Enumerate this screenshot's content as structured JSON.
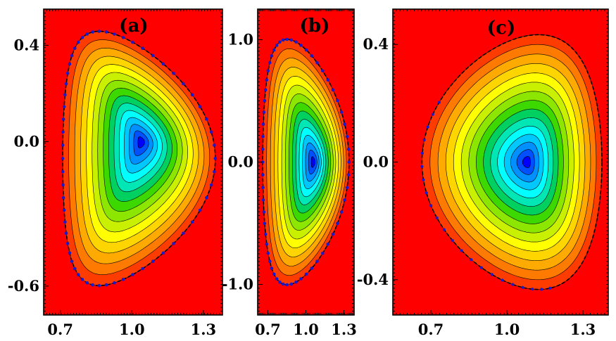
{
  "chart_data": [
    {
      "type": "heatmap",
      "panel_label": "(a)",
      "xlim": [
        0.63,
        1.38
      ],
      "ylim": [
        -0.72,
        0.55
      ],
      "x_ticks": [
        0.7,
        1.0,
        1.3
      ],
      "x_tick_labels": [
        "0.7",
        "1.0",
        "1.3"
      ],
      "y_ticks": [
        0.4,
        0.0,
        -0.6
      ],
      "y_tick_labels": [
        "0.4",
        "0.0",
        "-0.6"
      ],
      "magnetic_axis": [
        1.04,
        0.0
      ],
      "boundary": {
        "r0": 1.03,
        "a": 0.32,
        "kappa": 1.65,
        "delta": 0.55,
        "z0": -0.07
      },
      "levels": 15,
      "colors": {
        "background": "#ff0000",
        "core": "#0000ff"
      }
    },
    {
      "type": "heatmap",
      "panel_label": "(b)",
      "xlim": [
        0.62,
        1.38
      ],
      "ylim": [
        -1.25,
        1.25
      ],
      "x_ticks": [
        0.7,
        1.0,
        1.3
      ],
      "x_tick_labels": [
        "0.7",
        "1.0",
        "1.3"
      ],
      "y_ticks": [
        1.0,
        0.0,
        -1.0
      ],
      "y_tick_labels": [
        "1.0",
        "0.0",
        "-1.0"
      ],
      "magnetic_axis": [
        1.06,
        0.0
      ],
      "boundary": {
        "r0": 1.0,
        "a": 0.34,
        "kappa": 2.95,
        "delta": 0.45,
        "z0": 0.0
      },
      "levels": 15,
      "colors": {
        "background": "#ff0000",
        "core": "#0000ff"
      }
    },
    {
      "type": "heatmap",
      "panel_label": "(c)",
      "xlim": [
        0.55,
        1.4
      ],
      "ylim": [
        -0.52,
        0.52
      ],
      "x_ticks": [
        0.7,
        1.0,
        1.3
      ],
      "x_tick_labels": [
        "0.7",
        "1.0",
        "1.3"
      ],
      "y_ticks": [
        0.4,
        0.0,
        -0.4
      ],
      "y_tick_labels": [
        "0.4",
        "0.0",
        "-0.4"
      ],
      "magnetic_axis": [
        1.08,
        0.0
      ],
      "boundary": {
        "r0": 1.02,
        "a": 0.355,
        "kappa": 1.22,
        "delta": -0.3,
        "z0": 0.0
      },
      "levels": 15,
      "colors": {
        "background": "#ff0000",
        "core": "#0000ff"
      }
    }
  ]
}
